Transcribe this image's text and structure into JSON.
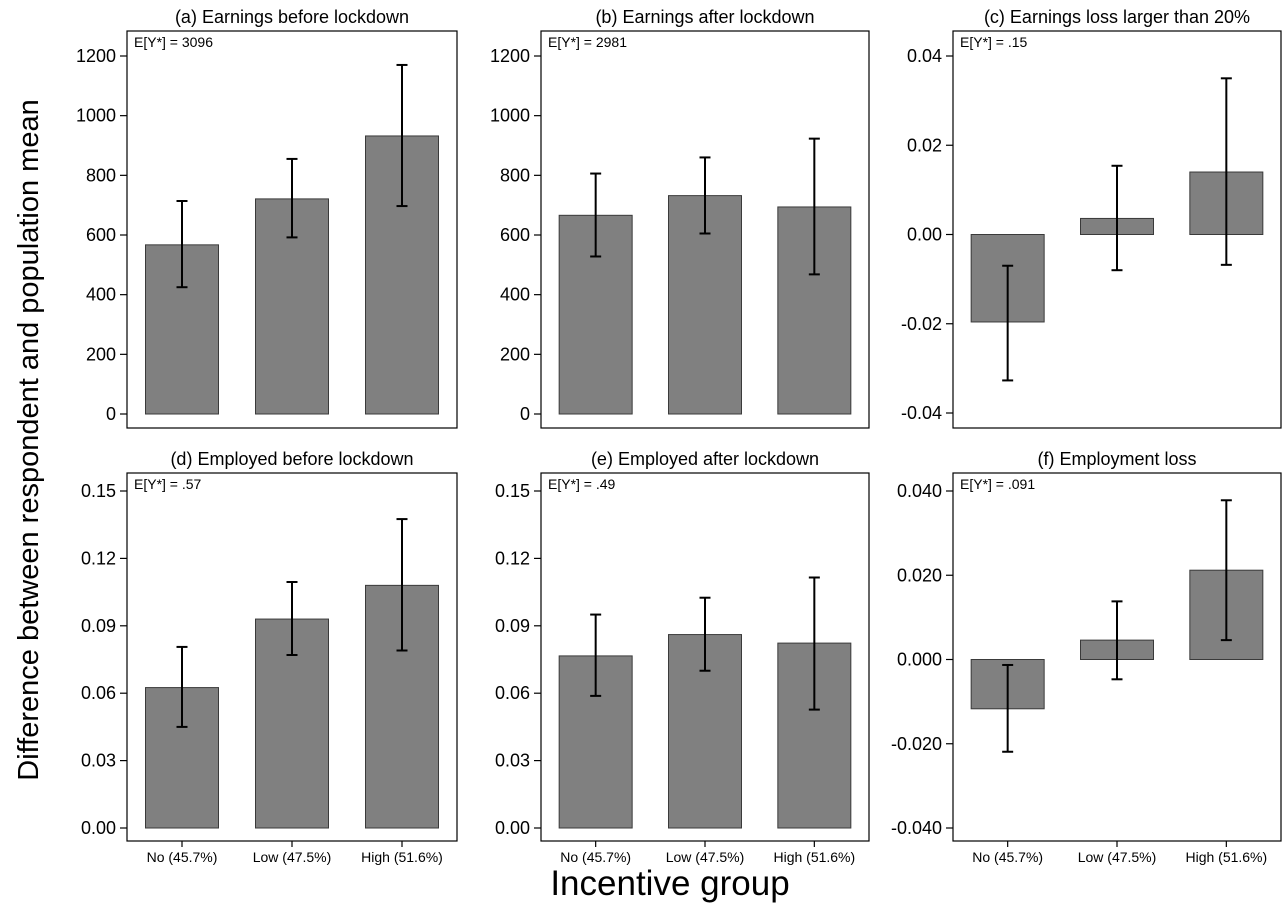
{
  "figure": {
    "ylabel": "Difference between respondent and population mean",
    "xlabel": "Incentive group"
  },
  "colors": {
    "bar_fill": "#808080",
    "bar_edge": "#3a3a3a",
    "error_bar": "#000000",
    "frame": "#000000",
    "background": "#ffffff"
  },
  "chart_data": [
    {
      "type": "bar",
      "title": "(a) Earnings before lockdown",
      "annotation": "E[Y*] = 3096",
      "categories": [
        "No (45.7%)",
        "Low (47.5%)",
        "High (51.6%)"
      ],
      "values": [
        567,
        721,
        932
      ],
      "error_low": [
        425,
        592,
        697
      ],
      "error_high": [
        714,
        855,
        1170
      ],
      "ylim": [
        -30,
        1240
      ],
      "yticks": [
        0,
        200,
        400,
        600,
        800,
        1000,
        1200
      ],
      "yticklabels": [
        "0",
        "200",
        "400",
        "600",
        "800",
        "1000",
        "1200"
      ]
    },
    {
      "type": "bar",
      "title": "(b) Earnings after lockdown",
      "annotation": "E[Y*] = 2981",
      "categories": [
        "No (45.7%)",
        "Low (47.5%)",
        "High (51.6%)"
      ],
      "values": [
        666,
        732,
        694
      ],
      "error_low": [
        528,
        605,
        468
      ],
      "error_high": [
        806,
        860,
        923
      ],
      "ylim": [
        -30,
        1240
      ],
      "yticks": [
        0,
        200,
        400,
        600,
        800,
        1000,
        1200
      ],
      "yticklabels": [
        "0",
        "200",
        "400",
        "600",
        "800",
        "1000",
        "1200"
      ]
    },
    {
      "type": "bar",
      "title": "(c) Earnings loss larger than 20%",
      "annotation": "E[Y*] = .15",
      "categories": [
        "No (45.7%)",
        "Low (47.5%)",
        "High (51.6%)"
      ],
      "values": [
        -0.0196,
        0.0036,
        0.014
      ],
      "error_low": [
        -0.0327,
        -0.008,
        -0.0068
      ],
      "error_high": [
        -0.007,
        0.0154,
        0.035
      ],
      "ylim": [
        -0.0427,
        0.0427
      ],
      "yticks": [
        -0.04,
        -0.02,
        0.0,
        0.02,
        0.04
      ],
      "yticklabels": [
        "-0.04",
        "-0.02",
        "0.00",
        "0.02",
        "0.04"
      ]
    },
    {
      "type": "bar",
      "title": "(d) Employed before lockdown",
      "annotation": "E[Y*] = .57",
      "categories": [
        "No (45.7%)",
        "Low (47.5%)",
        "High (51.6%)"
      ],
      "values": [
        0.0625,
        0.093,
        0.108
      ],
      "error_low": [
        0.045,
        0.077,
        0.079
      ],
      "error_high": [
        0.0806,
        0.1095,
        0.1375
      ],
      "ylim": [
        0,
        0.153
      ],
      "yticks": [
        0,
        0.03,
        0.06,
        0.09,
        0.12,
        0.15
      ],
      "yticklabels": [
        "0.00",
        "0.03",
        "0.06",
        "0.09",
        "0.12",
        "0.15"
      ]
    },
    {
      "type": "bar",
      "title": "(e) Employed after lockdown",
      "annotation": "E[Y*] = .49",
      "categories": [
        "No (45.7%)",
        "Low (47.5%)",
        "High (51.6%)"
      ],
      "values": [
        0.0766,
        0.0861,
        0.0823
      ],
      "error_low": [
        0.0588,
        0.07,
        0.0527
      ],
      "error_high": [
        0.095,
        0.1025,
        0.1115
      ],
      "ylim": [
        0,
        0.153
      ],
      "yticks": [
        0,
        0.03,
        0.06,
        0.09,
        0.12,
        0.15
      ],
      "yticklabels": [
        "0.00",
        "0.03",
        "0.06",
        "0.09",
        "0.12",
        "0.15"
      ]
    },
    {
      "type": "bar",
      "title": "(f) Employment loss",
      "annotation": "E[Y*] = .091",
      "categories": [
        "No (45.7%)",
        "Low (47.5%)",
        "High (51.6%)"
      ],
      "values": [
        -0.0117,
        0.0046,
        0.0212
      ],
      "error_low": [
        -0.0219,
        -0.0047,
        0.0046
      ],
      "error_high": [
        -0.0013,
        0.0138,
        0.0378
      ],
      "ylim": [
        -0.0427,
        0.041
      ],
      "yticks": [
        -0.04,
        -0.02,
        0.0,
        0.02,
        0.04
      ],
      "yticklabels": [
        "-0.040",
        "-0.020",
        "0.000",
        "0.020",
        "0.040"
      ]
    }
  ]
}
